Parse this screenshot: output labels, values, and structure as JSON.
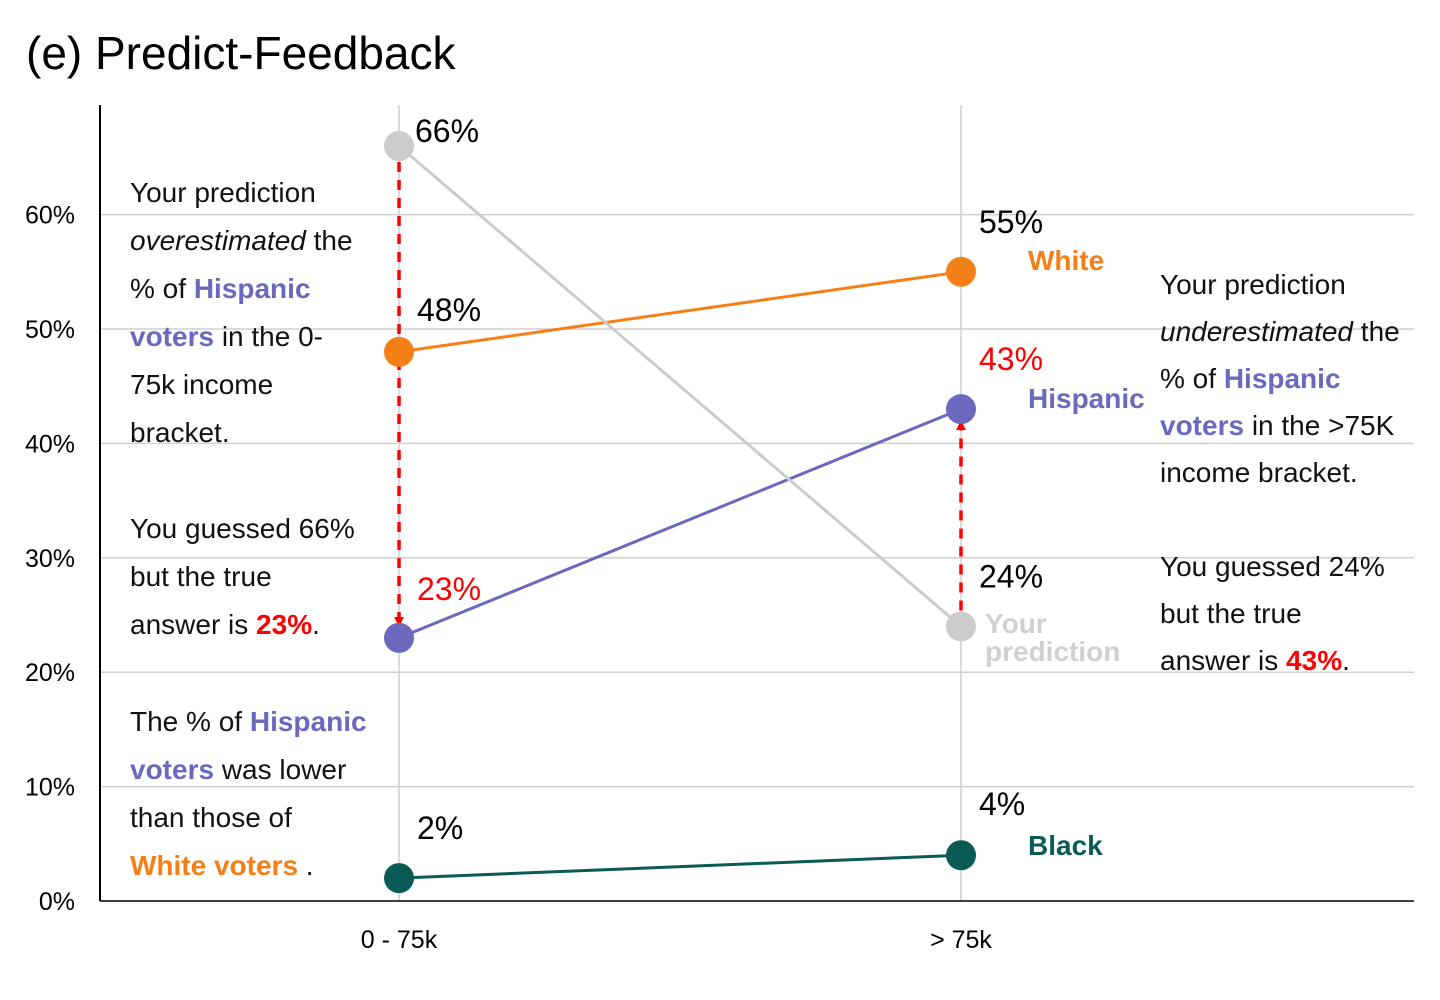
{
  "title": "(e) Predict-Feedback",
  "colors": {
    "white": "#f57f17",
    "hispanic": "#6b68bd",
    "black": "#0a5b55",
    "prediction": "#cccccc",
    "feedback": "#ff0000"
  },
  "chart_data": {
    "type": "line",
    "categories": [
      "0 - 75k",
      "> 75k"
    ],
    "ylim": [
      0,
      70
    ],
    "yticks": [
      "0%",
      "10%",
      "20%",
      "30%",
      "40%",
      "50%",
      "60%"
    ],
    "grid": true,
    "series": [
      {
        "name": "White",
        "values": [
          48,
          55
        ],
        "labels": [
          "48%",
          "55%"
        ],
        "color": "#f57f17"
      },
      {
        "name": "Hispanic",
        "values": [
          23,
          43
        ],
        "labels": [
          "23%",
          "43%"
        ],
        "color": "#6b68bd"
      },
      {
        "name": "Black",
        "values": [
          2,
          4
        ],
        "labels": [
          "2%",
          "4%"
        ],
        "color": "#0a5b55"
      },
      {
        "name": "Your prediction",
        "values": [
          66,
          24
        ],
        "labels": [
          "66%",
          "24%"
        ],
        "color": "#cccccc"
      }
    ],
    "feedback_arrows": [
      {
        "category": "0 - 75k",
        "from": 66,
        "to": 23
      },
      {
        "category": "> 75k",
        "from": 24,
        "to": 43
      }
    ]
  },
  "annotations": {
    "left_top": [
      [
        {
          "t": "Your prediction"
        }
      ],
      [
        {
          "t": "overestimated",
          "s": "it"
        },
        {
          "t": " the"
        }
      ],
      [
        {
          "t": "% of "
        },
        {
          "t": "Hispanic",
          "c": "hispanic",
          "s": "b"
        }
      ],
      [
        {
          "t": "voters",
          "c": "hispanic",
          "s": "b"
        },
        {
          "t": " in the 0-"
        }
      ],
      [
        {
          "t": "75k income"
        }
      ],
      [
        {
          "t": "bracket."
        }
      ]
    ],
    "left_mid": [
      [
        {
          "t": "You guessed 66%"
        }
      ],
      [
        {
          "t": "but the true"
        }
      ],
      [
        {
          "t": "answer is "
        },
        {
          "t": "23%",
          "c": "feedback",
          "s": "b"
        },
        {
          "t": "."
        }
      ]
    ],
    "left_bottom": [
      [
        {
          "t": "The % of "
        },
        {
          "t": "Hispanic",
          "c": "hispanic",
          "s": "b"
        }
      ],
      [
        {
          "t": "voters",
          "c": "hispanic",
          "s": "b"
        },
        {
          "t": " was lower"
        }
      ],
      [
        {
          "t": "than those of"
        }
      ],
      [
        {
          "t": "White voters",
          "c": "white",
          "s": "b"
        },
        {
          "t": " ."
        }
      ]
    ],
    "right_top": [
      [
        {
          "t": "Your prediction"
        }
      ],
      [
        {
          "t": "underestimated",
          "s": "it"
        },
        {
          "t": " the"
        }
      ],
      [
        {
          "t": "% of "
        },
        {
          "t": "Hispanic",
          "c": "hispanic",
          "s": "b"
        }
      ],
      [
        {
          "t": "voters",
          "c": "hispanic",
          "s": "b"
        },
        {
          "t": " in the >75K"
        }
      ],
      [
        {
          "t": "income bracket."
        }
      ]
    ],
    "right_bottom": [
      [
        {
          "t": "You guessed 24%"
        }
      ],
      [
        {
          "t": "but the true"
        }
      ],
      [
        {
          "t": "answer is "
        },
        {
          "t": "43%",
          "c": "feedback",
          "s": "b"
        },
        {
          "t": "."
        }
      ]
    ]
  }
}
